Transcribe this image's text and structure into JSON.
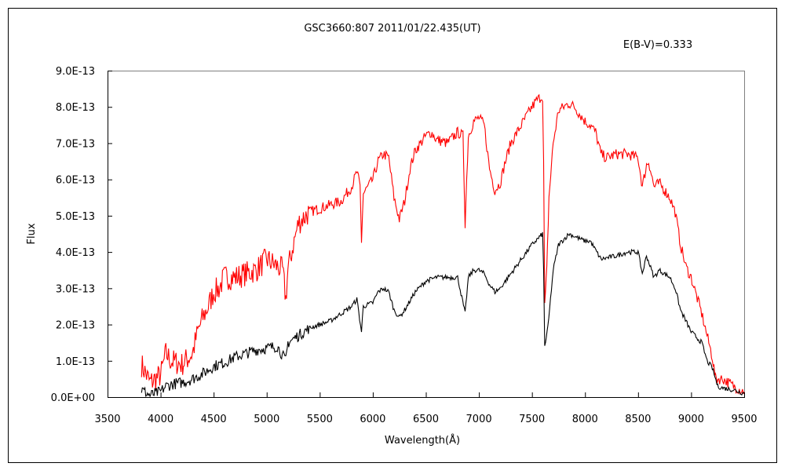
{
  "chart_data": {
    "type": "line",
    "title": "GSC3660:807    2011/01/22.435(UT)",
    "annotation": "E(B-V)=0.333",
    "annotation_color": "#ff0000",
    "xlabel": "Wavelength(Å)",
    "ylabel": "Flux",
    "xlim": [
      3500,
      9500
    ],
    "ylim": [
      0,
      9e-13
    ],
    "x_ticks": [
      "3500",
      "4000",
      "4500",
      "5000",
      "5500",
      "6000",
      "6500",
      "7000",
      "7500",
      "8000",
      "8500",
      "9000",
      "9500"
    ],
    "y_ticks": [
      "0.0E+00",
      "1.0E-13",
      "2.0E-13",
      "3.0E-13",
      "4.0E-13",
      "5.0E-13",
      "6.0E-13",
      "7.0E-13",
      "8.0E-13",
      "9.0E-13"
    ],
    "grid": false,
    "y_unit_scale": 1e-13,
    "series": [
      {
        "color": "#ff0000",
        "points": [
          [
            3820,
            0.9
          ],
          [
            3900,
            0.4
          ],
          [
            4000,
            0.6
          ],
          [
            4050,
            1.2
          ],
          [
            4100,
            1.0
          ],
          [
            4200,
            0.9
          ],
          [
            4300,
            1.2
          ],
          [
            4350,
            1.8
          ],
          [
            4400,
            2.2
          ],
          [
            4450,
            2.5
          ],
          [
            4500,
            2.9
          ],
          [
            4550,
            3.0
          ],
          [
            4600,
            3.3
          ],
          [
            4700,
            3.3
          ],
          [
            4800,
            3.4
          ],
          [
            4900,
            3.5
          ],
          [
            5000,
            3.8
          ],
          [
            5100,
            3.6
          ],
          [
            5150,
            3.5
          ],
          [
            5180,
            2.7
          ],
          [
            5200,
            3.5
          ],
          [
            5250,
            4.2
          ],
          [
            5300,
            4.8
          ],
          [
            5400,
            5.1
          ],
          [
            5500,
            5.2
          ],
          [
            5600,
            5.3
          ],
          [
            5700,
            5.4
          ],
          [
            5800,
            5.8
          ],
          [
            5850,
            6.2
          ],
          [
            5880,
            5.8
          ],
          [
            5893,
            4.3
          ],
          [
            5910,
            5.6
          ],
          [
            6000,
            6.0
          ],
          [
            6050,
            6.5
          ],
          [
            6100,
            6.7
          ],
          [
            6150,
            6.6
          ],
          [
            6200,
            5.5
          ],
          [
            6250,
            4.9
          ],
          [
            6300,
            5.4
          ],
          [
            6350,
            6.3
          ],
          [
            6400,
            6.8
          ],
          [
            6500,
            7.2
          ],
          [
            6550,
            7.3
          ],
          [
            6600,
            7.1
          ],
          [
            6700,
            7.0
          ],
          [
            6800,
            7.3
          ],
          [
            6850,
            7.2
          ],
          [
            6870,
            4.8
          ],
          [
            6900,
            7.2
          ],
          [
            6950,
            7.6
          ],
          [
            7000,
            7.7
          ],
          [
            7050,
            7.5
          ],
          [
            7100,
            6.3
          ],
          [
            7150,
            5.7
          ],
          [
            7200,
            5.9
          ],
          [
            7250,
            6.5
          ],
          [
            7300,
            7.0
          ],
          [
            7400,
            7.5
          ],
          [
            7500,
            8.0
          ],
          [
            7550,
            8.2
          ],
          [
            7600,
            8.3
          ],
          [
            7610,
            6.5
          ],
          [
            7620,
            2.5
          ],
          [
            7640,
            3.5
          ],
          [
            7660,
            5.5
          ],
          [
            7700,
            7.0
          ],
          [
            7750,
            7.9
          ],
          [
            7800,
            8.0
          ],
          [
            7850,
            8.1
          ],
          [
            7900,
            8.0
          ],
          [
            8000,
            7.6
          ],
          [
            8050,
            7.5
          ],
          [
            8100,
            7.3
          ],
          [
            8150,
            6.7
          ],
          [
            8200,
            6.6
          ],
          [
            8300,
            6.7
          ],
          [
            8400,
            6.7
          ],
          [
            8500,
            6.6
          ],
          [
            8540,
            5.8
          ],
          [
            8580,
            6.4
          ],
          [
            8600,
            6.5
          ],
          [
            8650,
            5.8
          ],
          [
            8700,
            5.9
          ],
          [
            8800,
            5.5
          ],
          [
            8850,
            5.1
          ],
          [
            8900,
            4.2
          ],
          [
            8950,
            3.6
          ],
          [
            9000,
            3.3
          ],
          [
            9050,
            2.8
          ],
          [
            9100,
            2.3
          ],
          [
            9150,
            1.7
          ],
          [
            9200,
            1.1
          ],
          [
            9230,
            0.5
          ],
          [
            9300,
            0.5
          ],
          [
            9400,
            0.3
          ],
          [
            9500,
            0.15
          ]
        ]
      },
      {
        "color": "#000000",
        "points": [
          [
            3820,
            0.2
          ],
          [
            3900,
            0.05
          ],
          [
            4000,
            0.15
          ],
          [
            4050,
            0.3
          ],
          [
            4100,
            0.35
          ],
          [
            4200,
            0.4
          ],
          [
            4300,
            0.5
          ],
          [
            4400,
            0.65
          ],
          [
            4500,
            0.85
          ],
          [
            4600,
            0.95
          ],
          [
            4700,
            1.1
          ],
          [
            4800,
            1.2
          ],
          [
            4900,
            1.3
          ],
          [
            5000,
            1.35
          ],
          [
            5100,
            1.4
          ],
          [
            5180,
            1.0
          ],
          [
            5200,
            1.5
          ],
          [
            5300,
            1.7
          ],
          [
            5400,
            1.9
          ],
          [
            5500,
            2.0
          ],
          [
            5600,
            2.1
          ],
          [
            5700,
            2.3
          ],
          [
            5800,
            2.5
          ],
          [
            5850,
            2.7
          ],
          [
            5893,
            1.8
          ],
          [
            5910,
            2.5
          ],
          [
            6000,
            2.6
          ],
          [
            6050,
            2.9
          ],
          [
            6100,
            3.0
          ],
          [
            6150,
            2.9
          ],
          [
            6200,
            2.4
          ],
          [
            6250,
            2.2
          ],
          [
            6300,
            2.4
          ],
          [
            6400,
            2.9
          ],
          [
            6500,
            3.2
          ],
          [
            6600,
            3.3
          ],
          [
            6700,
            3.3
          ],
          [
            6800,
            3.3
          ],
          [
            6870,
            2.3
          ],
          [
            6900,
            3.3
          ],
          [
            6950,
            3.5
          ],
          [
            7000,
            3.5
          ],
          [
            7050,
            3.4
          ],
          [
            7100,
            3.1
          ],
          [
            7150,
            2.9
          ],
          [
            7200,
            3.0
          ],
          [
            7300,
            3.4
          ],
          [
            7400,
            3.8
          ],
          [
            7500,
            4.2
          ],
          [
            7600,
            4.5
          ],
          [
            7610,
            3.5
          ],
          [
            7620,
            1.4
          ],
          [
            7650,
            1.9
          ],
          [
            7700,
            3.5
          ],
          [
            7750,
            4.2
          ],
          [
            7850,
            4.5
          ],
          [
            8000,
            4.3
          ],
          [
            8050,
            4.3
          ],
          [
            8150,
            3.8
          ],
          [
            8300,
            3.9
          ],
          [
            8400,
            4.0
          ],
          [
            8500,
            4.0
          ],
          [
            8540,
            3.4
          ],
          [
            8580,
            3.9
          ],
          [
            8650,
            3.3
          ],
          [
            8700,
            3.5
          ],
          [
            8800,
            3.3
          ],
          [
            8850,
            3.0
          ],
          [
            8900,
            2.4
          ],
          [
            9000,
            1.8
          ],
          [
            9100,
            1.5
          ],
          [
            9150,
            1.0
          ],
          [
            9200,
            0.8
          ],
          [
            9250,
            0.3
          ],
          [
            9300,
            0.25
          ],
          [
            9400,
            0.2
          ],
          [
            9500,
            0.1
          ]
        ]
      }
    ]
  }
}
